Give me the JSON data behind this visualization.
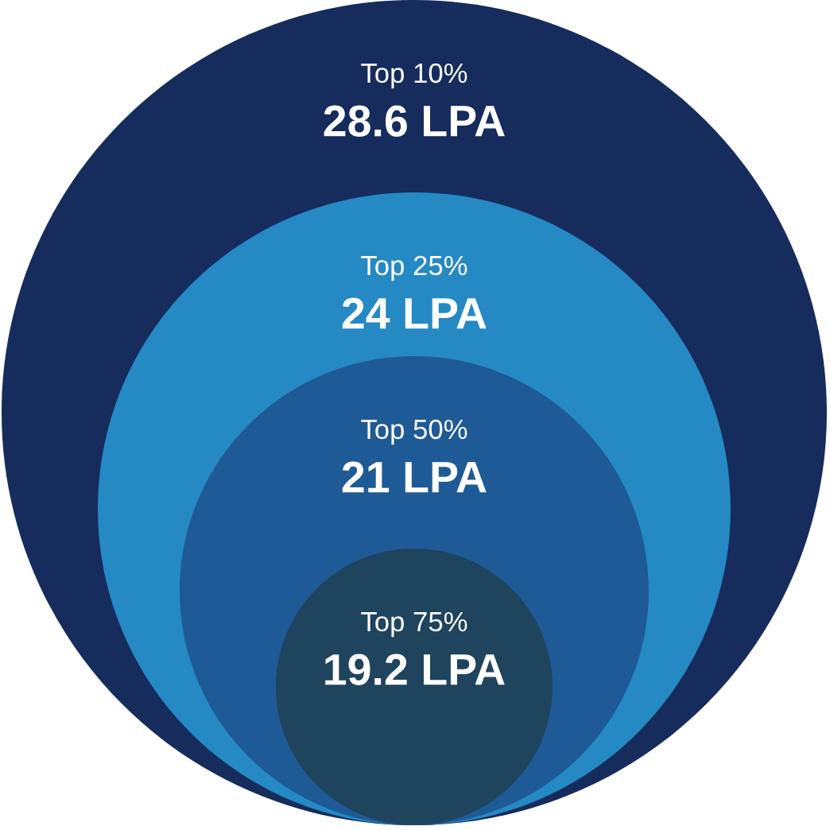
{
  "chart_data": {
    "type": "other",
    "categories": [
      "Top 10%",
      "Top 25%",
      "Top 50%",
      "Top 75%"
    ],
    "values": [
      28.6,
      24,
      21,
      19.2
    ],
    "value_labels": [
      "28.6 LPA",
      "24 LPA",
      "21 LPA",
      "19.2 LPA"
    ],
    "colors": [
      "#152c5c",
      "#2589c4",
      "#1e5a96",
      "#1e445e"
    ]
  }
}
